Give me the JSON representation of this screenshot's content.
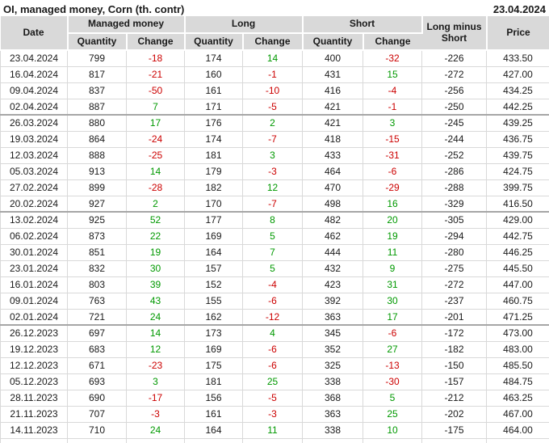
{
  "title": "OI, managed money, Corn (th. contr)",
  "report_date": "23.04.2024",
  "colors": {
    "positive": "#009900",
    "negative": "#cc0000",
    "header_bg": "#d9d9d9",
    "grid_line": "#d9d9d9",
    "group_line": "#a6a6a6"
  },
  "table": {
    "header": {
      "date": "Date",
      "managed_money": "Managed money",
      "long": "Long",
      "short": "Short",
      "long_minus_short": "Long minus Short",
      "price": "Price",
      "quantity": "Quantity",
      "change": "Change"
    },
    "rows": [
      {
        "date": "23.04.2024",
        "mm_quantity": 799,
        "mm_change": -18,
        "long_quantity": 174,
        "long_change": 14,
        "short_quantity": 400,
        "short_change": -32,
        "long_minus_short": -226,
        "price": "433.50",
        "group_end": false
      },
      {
        "date": "16.04.2024",
        "mm_quantity": 817,
        "mm_change": -21,
        "long_quantity": 160,
        "long_change": -1,
        "short_quantity": 431,
        "short_change": 15,
        "long_minus_short": -272,
        "price": "427.00",
        "group_end": false
      },
      {
        "date": "09.04.2024",
        "mm_quantity": 837,
        "mm_change": -50,
        "long_quantity": 161,
        "long_change": -10,
        "short_quantity": 416,
        "short_change": -4,
        "long_minus_short": -256,
        "price": "434.25",
        "group_end": false
      },
      {
        "date": "02.04.2024",
        "mm_quantity": 887,
        "mm_change": 7,
        "long_quantity": 171,
        "long_change": -5,
        "short_quantity": 421,
        "short_change": -1,
        "long_minus_short": -250,
        "price": "442.25",
        "group_end": true
      },
      {
        "date": "26.03.2024",
        "mm_quantity": 880,
        "mm_change": 17,
        "long_quantity": 176,
        "long_change": 2,
        "short_quantity": 421,
        "short_change": 3,
        "long_minus_short": -245,
        "price": "439.25",
        "group_end": false
      },
      {
        "date": "19.03.2024",
        "mm_quantity": 864,
        "mm_change": -24,
        "long_quantity": 174,
        "long_change": -7,
        "short_quantity": 418,
        "short_change": -15,
        "long_minus_short": -244,
        "price": "436.75",
        "group_end": false
      },
      {
        "date": "12.03.2024",
        "mm_quantity": 888,
        "mm_change": -25,
        "long_quantity": 181,
        "long_change": 3,
        "short_quantity": 433,
        "short_change": -31,
        "long_minus_short": -252,
        "price": "439.75",
        "group_end": false
      },
      {
        "date": "05.03.2024",
        "mm_quantity": 913,
        "mm_change": 14,
        "long_quantity": 179,
        "long_change": -3,
        "short_quantity": 464,
        "short_change": -6,
        "long_minus_short": -286,
        "price": "424.75",
        "group_end": false
      },
      {
        "date": "27.02.2024",
        "mm_quantity": 899,
        "mm_change": -28,
        "long_quantity": 182,
        "long_change": 12,
        "short_quantity": 470,
        "short_change": -29,
        "long_minus_short": -288,
        "price": "399.75",
        "group_end": false
      },
      {
        "date": "20.02.2024",
        "mm_quantity": 927,
        "mm_change": 2,
        "long_quantity": 170,
        "long_change": -7,
        "short_quantity": 498,
        "short_change": 16,
        "long_minus_short": -329,
        "price": "416.50",
        "group_end": true
      },
      {
        "date": "13.02.2024",
        "mm_quantity": 925,
        "mm_change": 52,
        "long_quantity": 177,
        "long_change": 8,
        "short_quantity": 482,
        "short_change": 20,
        "long_minus_short": -305,
        "price": "429.00",
        "group_end": false
      },
      {
        "date": "06.02.2024",
        "mm_quantity": 873,
        "mm_change": 22,
        "long_quantity": 169,
        "long_change": 5,
        "short_quantity": 462,
        "short_change": 19,
        "long_minus_short": -294,
        "price": "442.75",
        "group_end": false
      },
      {
        "date": "30.01.2024",
        "mm_quantity": 851,
        "mm_change": 19,
        "long_quantity": 164,
        "long_change": 7,
        "short_quantity": 444,
        "short_change": 11,
        "long_minus_short": -280,
        "price": "446.25",
        "group_end": false
      },
      {
        "date": "23.01.2024",
        "mm_quantity": 832,
        "mm_change": 30,
        "long_quantity": 157,
        "long_change": 5,
        "short_quantity": 432,
        "short_change": 9,
        "long_minus_short": -275,
        "price": "445.50",
        "group_end": false
      },
      {
        "date": "16.01.2024",
        "mm_quantity": 803,
        "mm_change": 39,
        "long_quantity": 152,
        "long_change": -4,
        "short_quantity": 423,
        "short_change": 31,
        "long_minus_short": -272,
        "price": "447.00",
        "group_end": false
      },
      {
        "date": "09.01.2024",
        "mm_quantity": 763,
        "mm_change": 43,
        "long_quantity": 155,
        "long_change": -6,
        "short_quantity": 392,
        "short_change": 30,
        "long_minus_short": -237,
        "price": "460.75",
        "group_end": false
      },
      {
        "date": "02.01.2024",
        "mm_quantity": 721,
        "mm_change": 24,
        "long_quantity": 162,
        "long_change": -12,
        "short_quantity": 363,
        "short_change": 17,
        "long_minus_short": -201,
        "price": "471.25",
        "group_end": true
      },
      {
        "date": "26.12.2023",
        "mm_quantity": 697,
        "mm_change": 14,
        "long_quantity": 173,
        "long_change": 4,
        "short_quantity": 345,
        "short_change": -6,
        "long_minus_short": -172,
        "price": "473.00",
        "group_end": false
      },
      {
        "date": "19.12.2023",
        "mm_quantity": 683,
        "mm_change": 12,
        "long_quantity": 169,
        "long_change": -6,
        "short_quantity": 352,
        "short_change": 27,
        "long_minus_short": -182,
        "price": "483.00",
        "group_end": false
      },
      {
        "date": "12.12.2023",
        "mm_quantity": 671,
        "mm_change": -23,
        "long_quantity": 175,
        "long_change": -6,
        "short_quantity": 325,
        "short_change": -13,
        "long_minus_short": -150,
        "price": "485.50",
        "group_end": false
      },
      {
        "date": "05.12.2023",
        "mm_quantity": 693,
        "mm_change": 3,
        "long_quantity": 181,
        "long_change": 25,
        "short_quantity": 338,
        "short_change": -30,
        "long_minus_short": -157,
        "price": "484.75",
        "group_end": false
      },
      {
        "date": "28.11.2023",
        "mm_quantity": 690,
        "mm_change": -17,
        "long_quantity": 156,
        "long_change": -5,
        "short_quantity": 368,
        "short_change": 5,
        "long_minus_short": -212,
        "price": "463.25",
        "group_end": false
      },
      {
        "date": "21.11.2023",
        "mm_quantity": 707,
        "mm_change": -3,
        "long_quantity": 161,
        "long_change": -3,
        "short_quantity": 363,
        "short_change": 25,
        "long_minus_short": -202,
        "price": "467.00",
        "group_end": false
      },
      {
        "date": "14.11.2023",
        "mm_quantity": 710,
        "mm_change": 24,
        "long_quantity": 164,
        "long_change": 11,
        "short_quantity": 338,
        "short_change": 10,
        "long_minus_short": -175,
        "price": "464.00",
        "group_end": false
      }
    ]
  }
}
